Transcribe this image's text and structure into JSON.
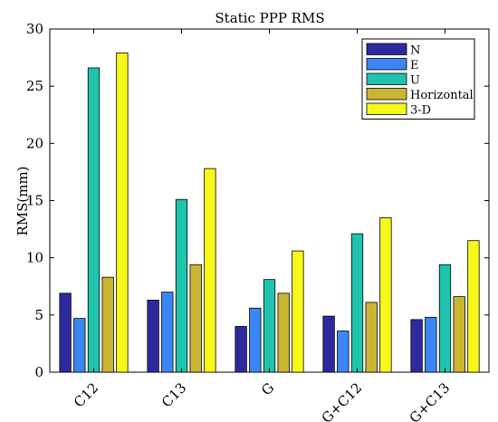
{
  "chart_data": {
    "type": "bar",
    "title": "Static PPP RMS",
    "xlabel": "",
    "ylabel": "RMS(mm)",
    "ylim": [
      0,
      30
    ],
    "yticks": [
      0,
      5,
      10,
      15,
      20,
      25,
      30
    ],
    "categories": [
      "C12",
      "C13",
      "G",
      "G+C12",
      "G+C13"
    ],
    "series": [
      {
        "name": "N",
        "color": "#2e2a9e",
        "values": [
          6.9,
          6.3,
          4.0,
          4.9,
          4.6
        ]
      },
      {
        "name": "E",
        "color": "#3a86f5",
        "values": [
          4.7,
          7.0,
          5.6,
          3.6,
          4.8
        ]
      },
      {
        "name": "U",
        "color": "#1fc4ad",
        "values": [
          26.6,
          15.1,
          8.1,
          12.1,
          9.4
        ]
      },
      {
        "name": "Horizontal",
        "color": "#cbb632",
        "values": [
          8.3,
          9.4,
          6.9,
          6.1,
          6.6
        ]
      },
      {
        "name": "3-D",
        "color": "#f7f71a",
        "values": [
          27.9,
          17.8,
          10.6,
          13.5,
          11.5
        ]
      }
    ],
    "grid": false,
    "legend": "top-right"
  }
}
